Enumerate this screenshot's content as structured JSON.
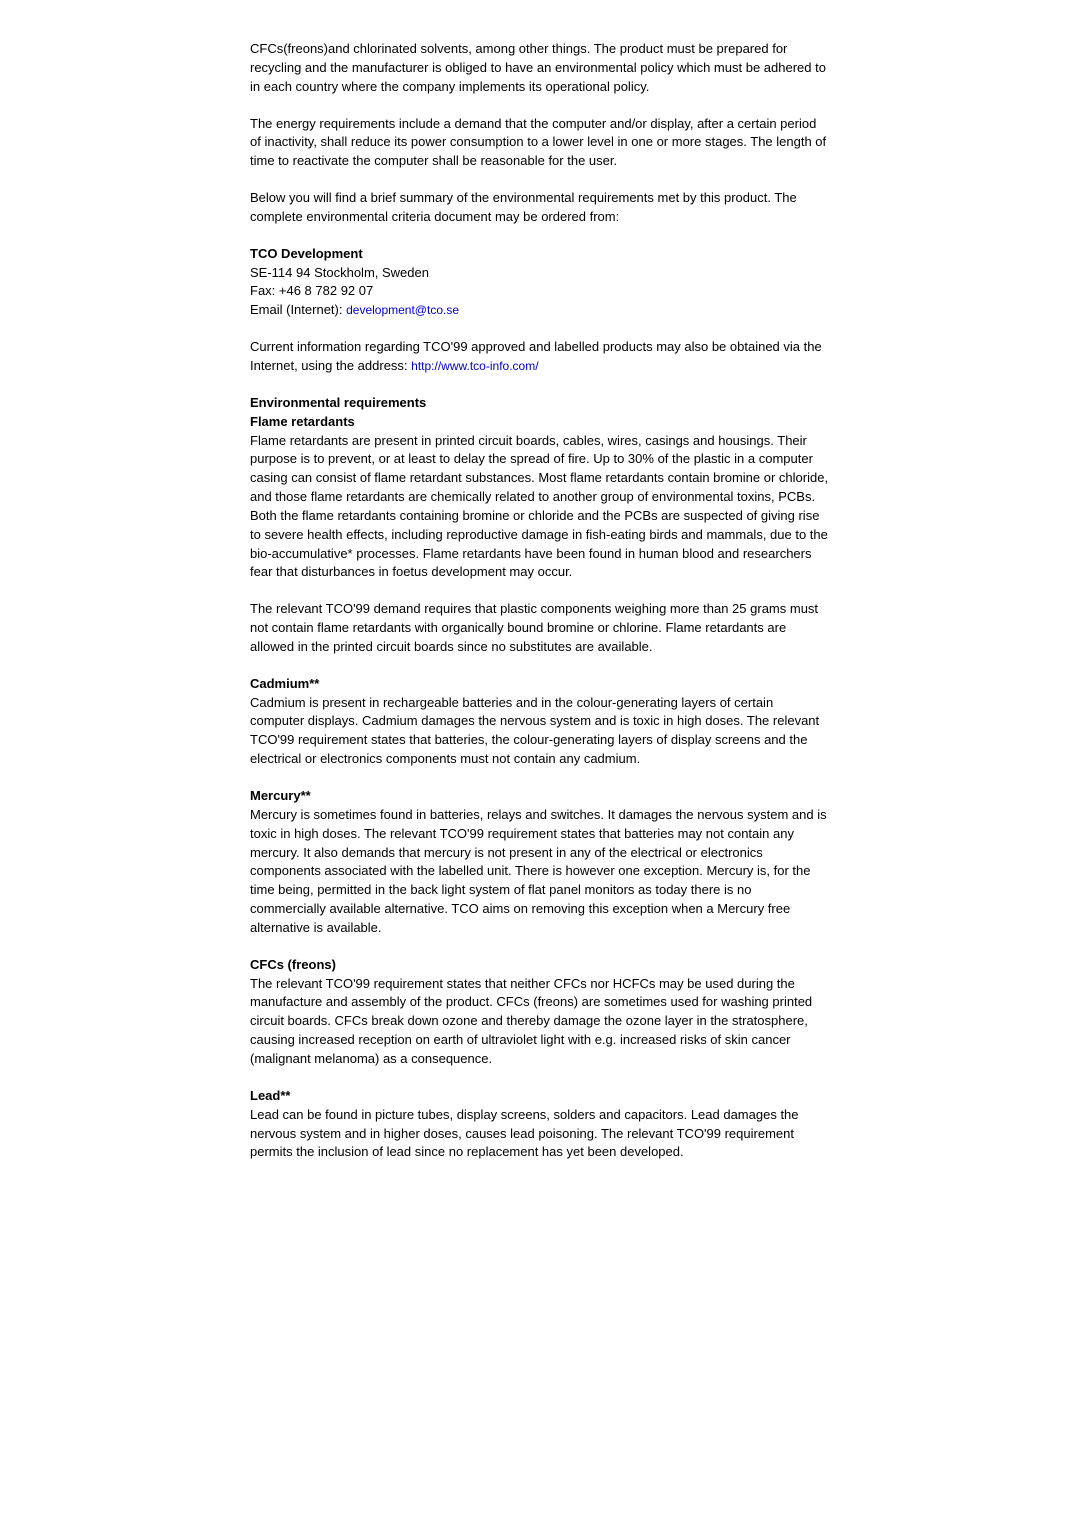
{
  "intro": {
    "p1": "CFCs(freons)and chlorinated solvents, among other things. The product must be prepared for recycling and the manufacturer is obliged to have an environmental policy which must be adhered to in each country where the company implements its operational policy.",
    "p2": "The energy requirements include a demand that the computer and/or display, after a certain period of inactivity, shall reduce its power consumption to a lower level in one or more stages. The length of time to reactivate the computer shall be reasonable for the user.",
    "p3": "Below you will find a brief summary of the environmental requirements met by this product. The complete environmental criteria document may be ordered from:"
  },
  "tco": {
    "heading": "TCO Development",
    "addr": "SE-114 94 Stockholm, Sweden",
    "fax": "Fax: +46 8 782 92 07",
    "email_label": "Email (Internet): ",
    "email_link": "development@tco.se",
    "current_text": "Current information regarding TCO'99 approved and labelled products may also be obtained via the Internet, using the address: ",
    "url": "http://www.tco-info.com/"
  },
  "env": {
    "heading": "Environmental requirements",
    "flame_heading": "Flame retardants",
    "flame_p1": "Flame retardants are present in printed circuit boards, cables, wires, casings and housings. Their purpose is to prevent, or at least to delay the spread of fire. Up to 30% of the plastic in a computer casing can consist of flame retardant substances. Most flame retardants contain bromine or chloride, and those flame retardants are chemically related to another group of environmental toxins, PCBs. Both the flame retardants containing bromine or chloride and the PCBs are suspected of giving rise to severe health effects, including reproductive damage in fish-eating birds and mammals, due to the bio-accumulative* processes. Flame retardants have been found in human blood and researchers fear that disturbances in foetus development may occur.",
    "flame_p2": "The relevant TCO'99 demand requires that plastic components weighing more than 25 grams must not contain flame retardants with organically bound bromine or chlorine. Flame retardants are allowed in the printed circuit boards since no substitutes are available."
  },
  "cadmium": {
    "heading": "Cadmium**",
    "body": "Cadmium is present in rechargeable batteries and in the colour-generating layers of certain computer displays. Cadmium damages the nervous system and is toxic in high doses. The relevant TCO'99 requirement states that batteries, the colour-generating layers of display screens and the electrical or electronics components must not contain any cadmium."
  },
  "mercury": {
    "heading": "Mercury**",
    "body": "Mercury is sometimes found in batteries, relays and switches. It damages the nervous system and is toxic in high doses. The relevant TCO'99 requirement states that batteries may not contain any mercury. It also demands that mercury is not present in any of the electrical or electronics components associated with the labelled unit. There is however one exception. Mercury is, for the time being, permitted in the back light system of flat panel monitors as today there is no commercially available alternative. TCO aims on removing this exception when a Mercury free alternative is available."
  },
  "cfcs": {
    "heading": "CFCs (freons)",
    "body": "The relevant TCO'99 requirement states that neither CFCs nor HCFCs may be used during the manufacture and assembly of the product. CFCs (freons) are sometimes used for washing printed circuit boards. CFCs break down ozone and thereby damage the ozone layer in the stratosphere, causing increased reception on earth of ultraviolet light with e.g. increased risks of skin cancer (malignant melanoma) as a consequence."
  },
  "lead": {
    "heading": "Lead**",
    "body": "Lead can be found in picture tubes, display screens, solders and capacitors. Lead damages the nervous system and in higher doses, causes lead poisoning. The relevant TCO'99 requirement permits the inclusion of lead since no replacement has yet been developed."
  }
}
